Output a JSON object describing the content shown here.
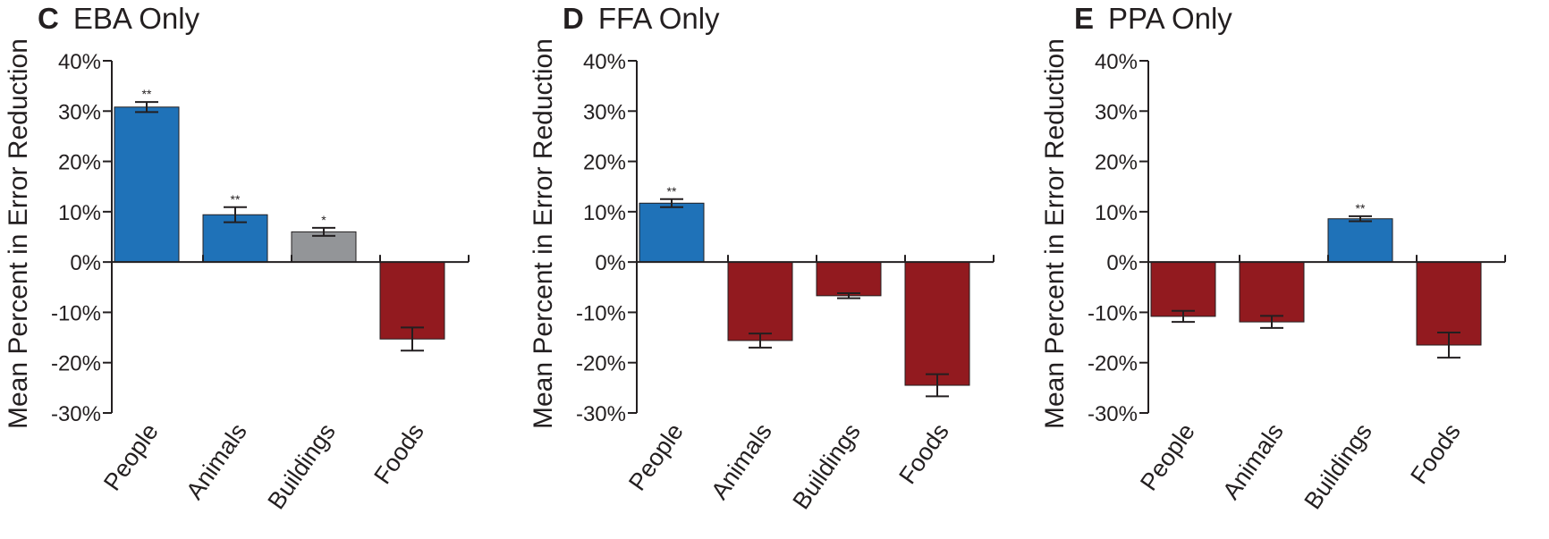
{
  "chart_data": [
    {
      "type": "bar",
      "panel": "C",
      "title": "EBA Only",
      "ylabel": "Mean Percent in Error Reduction",
      "categories": [
        "People",
        "Animals",
        "Buildings",
        "Foods"
      ],
      "values": [
        30.8,
        9.4,
        6.0,
        -15.3
      ],
      "errors": [
        1.0,
        1.5,
        0.8,
        2.3
      ],
      "significance": [
        "**",
        "**",
        "*",
        ""
      ],
      "bar_colors": [
        "#1f72b8",
        "#1f72b8",
        "#939598",
        "#921a1f"
      ],
      "ylim": [
        -30,
        40
      ],
      "yticks": [
        -30,
        -20,
        -10,
        0,
        10,
        20,
        30,
        40
      ],
      "ytick_labels": [
        "-30%",
        "-20%",
        "-10%",
        "0%",
        "10%",
        "20%",
        "30%",
        "40%"
      ]
    },
    {
      "type": "bar",
      "panel": "D",
      "title": "FFA Only",
      "ylabel": "Mean Percent in Error Reduction",
      "categories": [
        "People",
        "Animals",
        "Buildings",
        "Foods"
      ],
      "values": [
        11.7,
        -15.6,
        -6.7,
        -24.5
      ],
      "errors": [
        0.8,
        1.4,
        0.5,
        2.2
      ],
      "significance": [
        "**",
        "",
        "",
        ""
      ],
      "bar_colors": [
        "#1f72b8",
        "#921a1f",
        "#921a1f",
        "#921a1f"
      ],
      "ylim": [
        -30,
        40
      ],
      "yticks": [
        -30,
        -20,
        -10,
        0,
        10,
        20,
        30,
        40
      ],
      "ytick_labels": [
        "-30%",
        "-20%",
        "-10%",
        "0%",
        "10%",
        "20%",
        "30%",
        "40%"
      ]
    },
    {
      "type": "bar",
      "panel": "E",
      "title": "PPA Only",
      "ylabel": "Mean Percent in Error Reduction",
      "categories": [
        "People",
        "Animals",
        "Buildings",
        "Foods"
      ],
      "values": [
        -10.8,
        -11.9,
        8.6,
        -16.5
      ],
      "errors": [
        1.1,
        1.2,
        0.5,
        2.5
      ],
      "significance": [
        "",
        "",
        "**",
        ""
      ],
      "bar_colors": [
        "#921a1f",
        "#921a1f",
        "#1f72b8",
        "#921a1f"
      ],
      "ylim": [
        -30,
        40
      ],
      "yticks": [
        -30,
        -20,
        -10,
        0,
        10,
        20,
        30,
        40
      ],
      "ytick_labels": [
        "-30%",
        "-20%",
        "-10%",
        "0%",
        "10%",
        "20%",
        "30%",
        "40%"
      ]
    }
  ]
}
